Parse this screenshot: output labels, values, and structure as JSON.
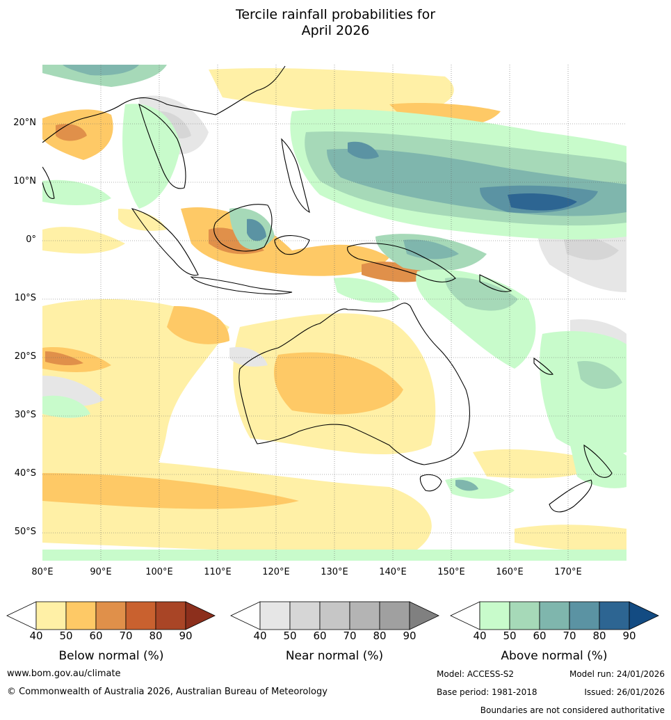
{
  "title": {
    "line1": "Tercile rainfall probabilities for",
    "line2": "April 2026"
  },
  "map": {
    "lat_labels": [
      "20°N",
      "10°N",
      "0°",
      "10°S",
      "20°S",
      "30°S",
      "40°S",
      "50°S"
    ],
    "lon_labels": [
      "80°E",
      "90°E",
      "100°E",
      "110°E",
      "120°E",
      "130°E",
      "140°E",
      "150°E",
      "160°E",
      "170°E"
    ],
    "lat_range": [
      -55,
      30
    ],
    "lon_range": [
      80,
      180
    ]
  },
  "legends": [
    {
      "name": "Below normal (%)",
      "ticks": [
        "40",
        "50",
        "60",
        "70",
        "80",
        "90"
      ],
      "colors": [
        "#fff0a6",
        "#fec966",
        "#e0904a",
        "#c9612f",
        "#a94526",
        "#8c2f1c"
      ]
    },
    {
      "name": "Near normal (%)",
      "ticks": [
        "40",
        "50",
        "60",
        "70",
        "80",
        "90"
      ],
      "colors": [
        "#e6e6e6",
        "#d6d6d6",
        "#c6c6c6",
        "#b4b4b4",
        "#a0a0a0",
        "#808080"
      ]
    },
    {
      "name": "Above normal (%)",
      "ticks": [
        "40",
        "50",
        "60",
        "70",
        "80",
        "90"
      ],
      "colors": [
        "#c8fbcb",
        "#a6d9b8",
        "#7fb6ad",
        "#5b93a3",
        "#2d6592",
        "#134b82"
      ]
    }
  ],
  "footer": {
    "website": "www.bom.gov.au/climate",
    "copyright": "© Commonwealth of Australia 2026, Australian Bureau of Meteorology",
    "model": "Model: ACCESS-S2",
    "model_run": "Model run: 24/01/2026",
    "base_period": "Base period: 1981-2018",
    "issued": "Issued: 26/01/2026",
    "disclaimer": "Boundaries are not considered authoritative"
  }
}
